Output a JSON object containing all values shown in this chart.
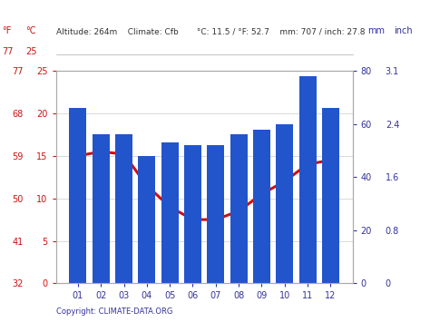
{
  "months": [
    "01",
    "02",
    "03",
    "04",
    "05",
    "06",
    "07",
    "08",
    "09",
    "10",
    "11",
    "12"
  ],
  "precipitation_mm": [
    66,
    56,
    56,
    48,
    53,
    52,
    52,
    56,
    58,
    60,
    78,
    66
  ],
  "temperature_c": [
    15.0,
    15.5,
    15.2,
    11.5,
    9.0,
    7.5,
    7.5,
    8.5,
    10.5,
    12.0,
    14.0,
    14.5
  ],
  "bar_color": "#2255CC",
  "line_color": "#CC1111",
  "left_ticks_c": [
    0,
    5,
    10,
    15,
    20,
    25
  ],
  "left_ticks_f": [
    32,
    41,
    50,
    59,
    68,
    77
  ],
  "right_ticks_mm": [
    0,
    20,
    40,
    60,
    80
  ],
  "right_ticks_inch": [
    "0",
    "0.8",
    "1.6",
    "2.4",
    "3.1"
  ],
  "ylim_mm": [
    0,
    80
  ],
  "ylim_c": [
    0,
    25
  ],
  "background_color": "#FFFFFF",
  "tick_color_red": "#CC1111",
  "tick_color_blue": "#333399",
  "copyright_text": "Copyright: CLIMATE-DATA.ORG"
}
